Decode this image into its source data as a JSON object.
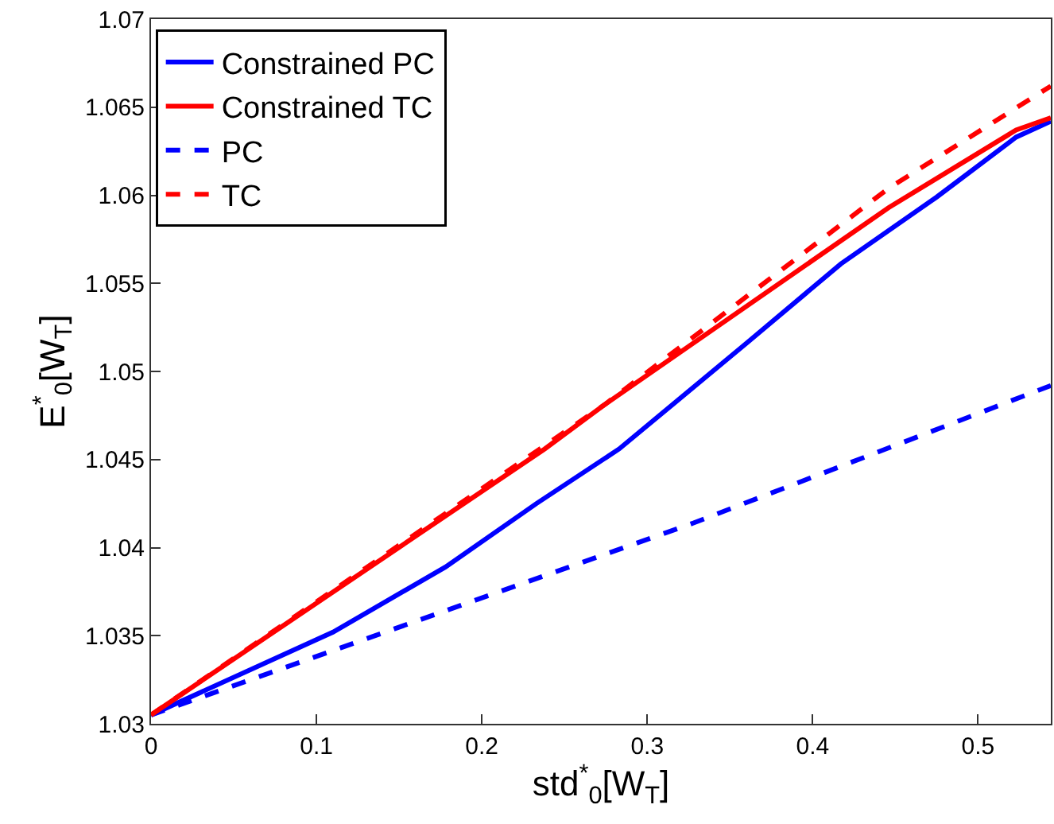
{
  "chart_data": {
    "type": "line",
    "xlabel": "std$^{*}$$_{0}$[W$_{T}$]",
    "ylabel": "E$^{*}$$_{0}$[W$_{T}$]",
    "xlim": [
      0,
      0.544
    ],
    "ylim": [
      1.03,
      1.07
    ],
    "xticks": [
      0,
      0.1,
      0.2,
      0.3,
      0.4,
      0.5
    ],
    "yticks": [
      1.03,
      1.035,
      1.04,
      1.045,
      1.05,
      1.055,
      1.06,
      1.065,
      1.07
    ],
    "legend": "top left",
    "series": [
      {
        "name": "Constrained PC",
        "color": "#0000ff",
        "line_style": "solid",
        "x": [
          0,
          0.11,
          0.178,
          0.233,
          0.283,
          0.36,
          0.417,
          0.475,
          0.523,
          0.544
        ],
        "values": [
          1.0305,
          1.0352,
          1.0389,
          1.0425,
          1.0456,
          1.0516,
          1.0561,
          1.0599,
          1.0633,
          1.0642
        ]
      },
      {
        "name": "Constrained TC",
        "color": "#ff0000",
        "line_style": "solid",
        "x": [
          0,
          0.238,
          0.274,
          0.446,
          0.523,
          0.544
        ],
        "values": [
          1.0305,
          1.0456,
          1.0481,
          1.0593,
          1.0637,
          1.0644
        ]
      },
      {
        "name": "PC",
        "color": "#0000ff",
        "line_style": "dashed",
        "x": [
          0,
          0.328,
          0.544
        ],
        "values": [
          1.0305,
          1.0414,
          1.0492
        ]
      },
      {
        "name": "TC",
        "color": "#ff0000",
        "line_style": "dashed",
        "x": [
          0,
          0.274,
          0.446,
          0.544
        ],
        "values": [
          1.0305,
          1.0481,
          1.0604,
          1.0662
        ]
      }
    ]
  }
}
